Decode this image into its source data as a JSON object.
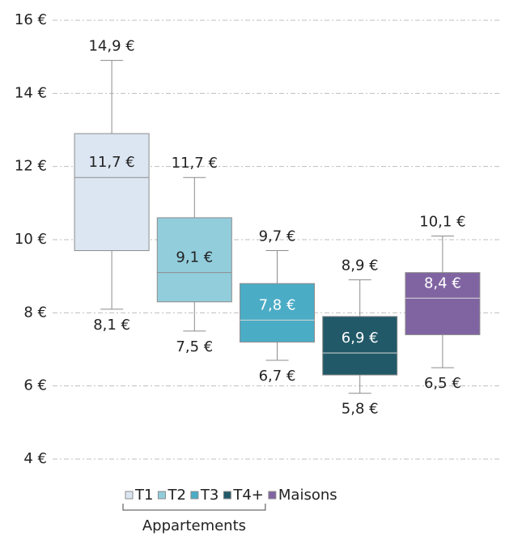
{
  "chart_data": {
    "type": "box",
    "ylim": [
      4,
      16
    ],
    "yticks": [
      {
        "value": 4,
        "label": "4 €"
      },
      {
        "value": 6,
        "label": "6 €"
      },
      {
        "value": 8,
        "label": "8 €"
      },
      {
        "value": 10,
        "label": "10 €"
      },
      {
        "value": 12,
        "label": "12 €"
      },
      {
        "value": 14,
        "label": "14 €"
      },
      {
        "value": 16,
        "label": "16 €"
      }
    ],
    "grid": true,
    "series": [
      {
        "name": "T1",
        "color": "#dce6f2",
        "min": 8.1,
        "q1": 9.7,
        "median": 11.7,
        "q3": 12.9,
        "max": 14.9,
        "value_labels": {
          "min": "8,1 €",
          "median": "11,7 €",
          "max": "14,9 €"
        }
      },
      {
        "name": "T2",
        "color": "#92cddc",
        "min": 7.5,
        "q1": 8.3,
        "median": 9.1,
        "q3": 10.6,
        "max": 11.7,
        "value_labels": {
          "min": "7,5 €",
          "median": "9,1 €",
          "max": "11,7 €"
        }
      },
      {
        "name": "T3",
        "color": "#4bacc6",
        "min": 6.7,
        "q1": 7.2,
        "median": 7.8,
        "q3": 8.8,
        "max": 9.7,
        "value_labels": {
          "min": "6,7 €",
          "median": "7,8 €",
          "max": "9,7 €"
        }
      },
      {
        "name": "T4+",
        "color": "#215968",
        "min": 5.8,
        "q1": 6.3,
        "median": 6.9,
        "q3": 7.9,
        "max": 8.9,
        "value_labels": {
          "min": "5,8 €",
          "median": "6,9 €",
          "max": "8,9 €"
        }
      },
      {
        "name": "Maisons",
        "color": "#8064a2",
        "min": 6.5,
        "q1": 7.4,
        "median": 8.4,
        "q3": 9.1,
        "max": 10.1,
        "value_labels": {
          "min": "6,5 €",
          "median": "8,4 €",
          "max": "10,1 €"
        }
      }
    ],
    "legend_group": {
      "label": "Appartements",
      "series": [
        0,
        1,
        2,
        3
      ]
    }
  }
}
